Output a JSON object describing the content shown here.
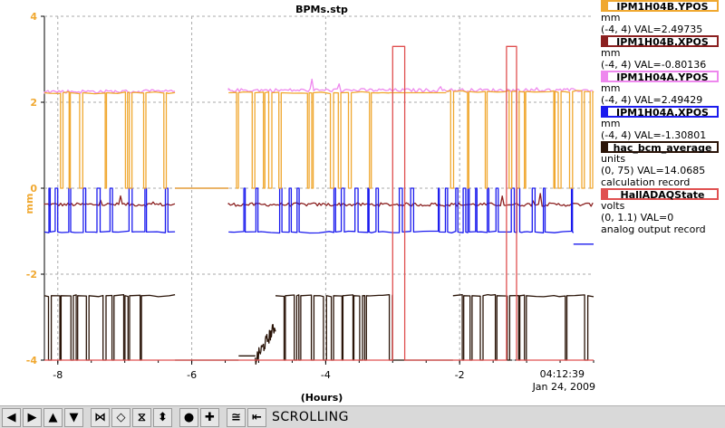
{
  "chart_data": {
    "type": "line",
    "title": "BPMs.stp",
    "xlabel": "(Hours)",
    "ylabel": "mm",
    "xlim": [
      -8.2,
      0.0
    ],
    "ylim": [
      -4,
      4
    ],
    "xticks": [
      -8,
      -6,
      -4,
      -2
    ],
    "yticks": [
      4,
      2,
      0,
      -2,
      -4
    ],
    "grid": true,
    "legend_placement": "right",
    "end_time": "04:12:39",
    "end_date": "Jan 24, 2009",
    "series": [
      {
        "name": "IPM1H04B.YPOS",
        "color": "#f0a830",
        "units": "mm",
        "range": "(-4, 4)",
        "val": "VAL=2.49735",
        "segments": [
          {
            "x": [
              -8.2,
              -6.25
            ],
            "base": 2.22,
            "low": 0.0,
            "pattern": "toggle"
          },
          {
            "x": [
              -6.25,
              -5.45
            ],
            "base": 0.0,
            "low": 0.0,
            "pattern": "flat"
          },
          {
            "x": [
              -5.45,
              -3.05
            ],
            "base": 2.22,
            "low": 0.0,
            "pattern": "toggle"
          },
          {
            "x": [
              -3.05,
              -2.2
            ],
            "base": 2.22,
            "low": 0.0,
            "pattern": "flat"
          },
          {
            "x": [
              -2.2,
              0.0
            ],
            "base": 2.25,
            "low": 0.0,
            "pattern": "toggle"
          }
        ]
      },
      {
        "name": "IPM1H04B.XPOS",
        "color": "#8b2020",
        "units": "mm",
        "range": "(-4, 4)",
        "val": "VAL=-0.80136",
        "segments": [
          {
            "x": [
              -8.2,
              -6.25
            ],
            "base": -0.38,
            "low": -0.38,
            "pattern": "noise"
          },
          {
            "x": [
              -6.25,
              -5.45
            ],
            "base": 0.0,
            "low": 0.0,
            "pattern": "flat"
          },
          {
            "x": [
              -5.45,
              0.0
            ],
            "base": -0.38,
            "low": -0.38,
            "pattern": "noise"
          }
        ]
      },
      {
        "name": "IPM1H04A.YPOS",
        "color": "#ee88ee",
        "units": "mm",
        "range": "(-4, 4)",
        "val": "VAL=2.49429",
        "segments": [
          {
            "x": [
              -8.2,
              -6.25
            ],
            "base": 2.25,
            "low": 2.2,
            "pattern": "noise"
          },
          {
            "x": [
              -5.45,
              0.0
            ],
            "base": 2.28,
            "low": 2.2,
            "pattern": "noise"
          }
        ]
      },
      {
        "name": "IPM1H04A.XPOS",
        "color": "#1a1aee",
        "units": "mm",
        "range": "(-4, 4)",
        "val": "VAL=-1.30801",
        "segments": [
          {
            "x": [
              -8.2,
              -6.25
            ],
            "base": -1.02,
            "low": 0.0,
            "pattern": "toggle"
          },
          {
            "x": [
              -5.45,
              -0.3
            ],
            "base": -1.02,
            "low": 0.0,
            "pattern": "toggle"
          },
          {
            "x": [
              -0.3,
              0.0
            ],
            "base": -1.3,
            "low": -1.3,
            "pattern": "flat"
          }
        ]
      },
      {
        "name": "hac_bcm_average",
        "color": "#2a1408",
        "units": "units",
        "range": "(0, 75)",
        "val": "VAL=14.0685",
        "note": "calculation record",
        "segments": [
          {
            "x": [
              -8.2,
              -6.25
            ],
            "base": -2.5,
            "low": -4.0,
            "pattern": "toggle"
          },
          {
            "x": [
              -6.25,
              -5.3
            ],
            "base": -4.0,
            "low": -4.0,
            "pattern": "flat"
          },
          {
            "x": [
              -5.3,
              -5.05
            ],
            "base": -3.9,
            "low": -4.0,
            "pattern": "flat"
          },
          {
            "x": [
              -5.05,
              -4.75
            ],
            "base": -3.2,
            "low": -4.0,
            "pattern": "ramp"
          },
          {
            "x": [
              -4.75,
              -3.0
            ],
            "base": -2.5,
            "low": -4.0,
            "pattern": "toggle"
          },
          {
            "x": [
              -3.0,
              -2.1
            ],
            "base": -4.0,
            "low": -4.0,
            "pattern": "flat"
          },
          {
            "x": [
              -2.1,
              0.0
            ],
            "base": -2.5,
            "low": -4.0,
            "pattern": "toggle"
          }
        ]
      },
      {
        "name": "HallADAQState",
        "color": "#e05050",
        "units": "volts",
        "range": "(0, 1.1)",
        "val": "VAL=0",
        "note": "analog output record",
        "pulses": [
          [
            -3.0,
            -2.82
          ],
          [
            -1.3,
            -1.15
          ]
        ],
        "low": -4.0,
        "high": 3.3
      }
    ]
  },
  "toolbar": {
    "buttons": [
      {
        "name": "scroll-left-button",
        "glyph": "◀"
      },
      {
        "name": "scroll-right-button",
        "glyph": "▶"
      },
      {
        "name": "scroll-up-button",
        "glyph": "▲"
      },
      {
        "name": "scroll-down-button",
        "glyph": "▼"
      },
      {
        "name": "zoom-x-in-button",
        "glyph": "⋈"
      },
      {
        "name": "zoom-x-out-button",
        "glyph": "◇"
      },
      {
        "name": "zoom-y-in-button",
        "glyph": "⧖"
      },
      {
        "name": "zoom-y-out-button",
        "glyph": "⬍"
      },
      {
        "name": "stop-button",
        "glyph": "●"
      },
      {
        "name": "add-button",
        "glyph": "✚"
      },
      {
        "name": "auto-scale-button",
        "glyph": "≅"
      },
      {
        "name": "undo-button",
        "glyph": "⇤"
      }
    ],
    "mode_label": "SCROLLING"
  }
}
